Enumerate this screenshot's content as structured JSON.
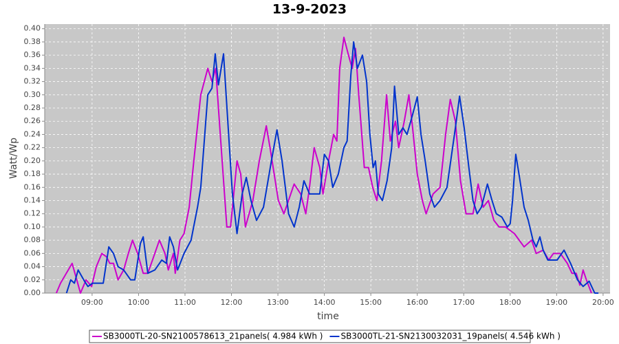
{
  "chart_data": {
    "type": "line",
    "title": "13-9-2023",
    "x_label": "time",
    "y_label": "Watt/Wp",
    "xlim": [
      7.98,
      20.15
    ],
    "ylim": [
      0,
      0.407
    ],
    "xticks": [
      {
        "value": 9,
        "label": "09:00"
      },
      {
        "value": 10,
        "label": "10:00"
      },
      {
        "value": 11,
        "label": "11:00"
      },
      {
        "value": 12,
        "label": "12:00"
      },
      {
        "value": 13,
        "label": "13:00"
      },
      {
        "value": 14,
        "label": "14:00"
      },
      {
        "value": 15,
        "label": "15:00"
      },
      {
        "value": 16,
        "label": "16:00"
      },
      {
        "value": 17,
        "label": "17:00"
      },
      {
        "value": 18,
        "label": "18:00"
      },
      {
        "value": 19,
        "label": "19:00"
      },
      {
        "value": 20,
        "label": "20:00"
      }
    ],
    "yticks": [
      {
        "value": 0,
        "label": "0.00"
      },
      {
        "value": 0.02,
        "label": "0.02"
      },
      {
        "value": 0.04,
        "label": "0.04"
      },
      {
        "value": 0.06,
        "label": "0.06"
      },
      {
        "value": 0.08,
        "label": "0.08"
      },
      {
        "value": 0.1,
        "label": "0.10"
      },
      {
        "value": 0.12,
        "label": "0.12"
      },
      {
        "value": 0.14,
        "label": "0.14"
      },
      {
        "value": 0.16,
        "label": "0.16"
      },
      {
        "value": 0.18,
        "label": "0.18"
      },
      {
        "value": 0.2,
        "label": "0.20"
      },
      {
        "value": 0.22,
        "label": "0.22"
      },
      {
        "value": 0.24,
        "label": "0.24"
      },
      {
        "value": 0.26,
        "label": "0.26"
      },
      {
        "value": 0.28,
        "label": "0.28"
      },
      {
        "value": 0.3,
        "label": "0.30"
      },
      {
        "value": 0.32,
        "label": "0.32"
      },
      {
        "value": 0.34,
        "label": "0.34"
      },
      {
        "value": 0.36,
        "label": "0.36"
      },
      {
        "value": 0.38,
        "label": "0.38"
      },
      {
        "value": 0.4,
        "label": "0.40"
      }
    ],
    "grid": true,
    "legend": "bottom",
    "series": [
      {
        "name": "SB3000TL-20-SN2100578613_21panels( 4.984 kWh )",
        "color": "#cc00cc",
        "x": [
          8.23,
          8.32,
          8.57,
          8.75,
          8.87,
          8.99,
          9.09,
          9.21,
          9.31,
          9.38,
          9.46,
          9.56,
          9.68,
          9.78,
          9.87,
          9.98,
          10.1,
          10.2,
          10.3,
          10.45,
          10.57,
          10.64,
          10.75,
          10.79,
          10.89,
          10.98,
          11.09,
          11.19,
          11.34,
          11.49,
          11.58,
          11.66,
          11.75,
          11.9,
          11.98,
          12.12,
          12.2,
          12.3,
          12.46,
          12.6,
          12.75,
          12.83,
          13.01,
          13.13,
          13.35,
          13.49,
          13.6,
          13.68,
          13.78,
          13.9,
          13.97,
          14.09,
          14.2,
          14.27,
          14.33,
          14.42,
          14.52,
          14.6,
          14.67,
          14.74,
          14.86,
          14.95,
          15.04,
          15.13,
          15.23,
          15.34,
          15.42,
          15.53,
          15.6,
          15.72,
          15.82,
          15.9,
          16.0,
          16.11,
          16.19,
          16.34,
          16.49,
          16.61,
          16.71,
          16.82,
          16.93,
          17.05,
          17.2,
          17.31,
          17.42,
          17.53,
          17.65,
          17.76,
          17.9,
          18.09,
          18.3,
          18.46,
          18.56,
          18.71,
          18.83,
          18.93,
          19.08,
          19.23,
          19.33,
          19.42,
          19.5,
          19.57,
          19.64,
          19.75
        ],
        "values": [
          0,
          0.015,
          0.045,
          0,
          0.02,
          0.01,
          0.04,
          0.06,
          0.055,
          0.045,
          0.045,
          0.02,
          0.035,
          0.06,
          0.08,
          0.06,
          0.03,
          0.03,
          0.05,
          0.08,
          0.06,
          0.035,
          0.06,
          0.03,
          0.08,
          0.09,
          0.13,
          0.2,
          0.3,
          0.34,
          0.32,
          0.34,
          0.25,
          0.1,
          0.1,
          0.2,
          0.18,
          0.1,
          0.14,
          0.2,
          0.253,
          0.22,
          0.14,
          0.12,
          0.165,
          0.15,
          0.12,
          0.16,
          0.22,
          0.19,
          0.15,
          0.2,
          0.24,
          0.23,
          0.34,
          0.387,
          0.36,
          0.34,
          0.37,
          0.3,
          0.19,
          0.19,
          0.16,
          0.14,
          0.2,
          0.3,
          0.23,
          0.26,
          0.22,
          0.26,
          0.3,
          0.25,
          0.18,
          0.14,
          0.12,
          0.15,
          0.16,
          0.24,
          0.293,
          0.26,
          0.17,
          0.12,
          0.12,
          0.165,
          0.13,
          0.14,
          0.11,
          0.1,
          0.1,
          0.09,
          0.07,
          0.08,
          0.06,
          0.065,
          0.05,
          0.06,
          0.06,
          0.045,
          0.03,
          0.03,
          0.012,
          0.035,
          0.02,
          0
        ]
      },
      {
        "name": "SB3000TL-21-SN2130032031_19panels( 4.546 kWh )",
        "color": "#0033cc",
        "x": [
          8.45,
          8.54,
          8.62,
          8.7,
          8.82,
          8.91,
          9.01,
          9.24,
          9.36,
          9.46,
          9.56,
          9.68,
          9.83,
          9.92,
          10.04,
          10.1,
          10.2,
          10.35,
          10.5,
          10.6,
          10.67,
          10.75,
          10.84,
          10.98,
          11.13,
          11.27,
          11.34,
          11.49,
          11.58,
          11.65,
          11.72,
          11.83,
          11.93,
          12.02,
          12.12,
          12.23,
          12.32,
          12.42,
          12.54,
          12.69,
          12.86,
          12.98,
          13.09,
          13.23,
          13.35,
          13.46,
          13.56,
          13.68,
          13.8,
          13.9,
          14.0,
          14.09,
          14.18,
          14.3,
          14.42,
          14.49,
          14.57,
          14.63,
          14.71,
          14.82,
          14.91,
          14.98,
          15.05,
          15.1,
          15.16,
          15.25,
          15.35,
          15.45,
          15.51,
          15.6,
          15.69,
          15.78,
          15.9,
          16.0,
          16.08,
          16.17,
          16.27,
          16.37,
          16.49,
          16.64,
          16.82,
          16.91,
          17.01,
          17.11,
          17.2,
          17.29,
          17.38,
          17.51,
          17.61,
          17.7,
          17.82,
          17.94,
          18.0,
          18.05,
          18.12,
          18.19,
          18.3,
          18.39,
          18.49,
          18.56,
          18.64,
          18.71,
          18.81,
          19.01,
          19.16,
          19.3,
          19.45,
          19.57,
          19.7,
          19.82,
          19.9
        ],
        "values": [
          0,
          0.02,
          0.015,
          0.035,
          0.02,
          0.01,
          0.015,
          0.015,
          0.07,
          0.06,
          0.04,
          0.035,
          0.02,
          0.02,
          0.075,
          0.085,
          0.03,
          0.035,
          0.05,
          0.045,
          0.085,
          0.07,
          0.035,
          0.06,
          0.08,
          0.13,
          0.16,
          0.3,
          0.31,
          0.362,
          0.315,
          0.362,
          0.25,
          0.15,
          0.09,
          0.15,
          0.175,
          0.14,
          0.11,
          0.13,
          0.2,
          0.247,
          0.2,
          0.12,
          0.1,
          0.13,
          0.17,
          0.15,
          0.15,
          0.15,
          0.21,
          0.2,
          0.16,
          0.18,
          0.22,
          0.23,
          0.33,
          0.38,
          0.34,
          0.36,
          0.32,
          0.24,
          0.19,
          0.2,
          0.15,
          0.14,
          0.17,
          0.22,
          0.313,
          0.24,
          0.25,
          0.24,
          0.27,
          0.297,
          0.24,
          0.2,
          0.15,
          0.13,
          0.14,
          0.16,
          0.25,
          0.298,
          0.25,
          0.19,
          0.14,
          0.12,
          0.13,
          0.165,
          0.14,
          0.12,
          0.115,
          0.1,
          0.105,
          0.14,
          0.21,
          0.18,
          0.13,
          0.11,
          0.08,
          0.07,
          0.085,
          0.065,
          0.05,
          0.05,
          0.065,
          0.045,
          0.02,
          0.01,
          0.018,
          0,
          0
        ]
      }
    ]
  }
}
